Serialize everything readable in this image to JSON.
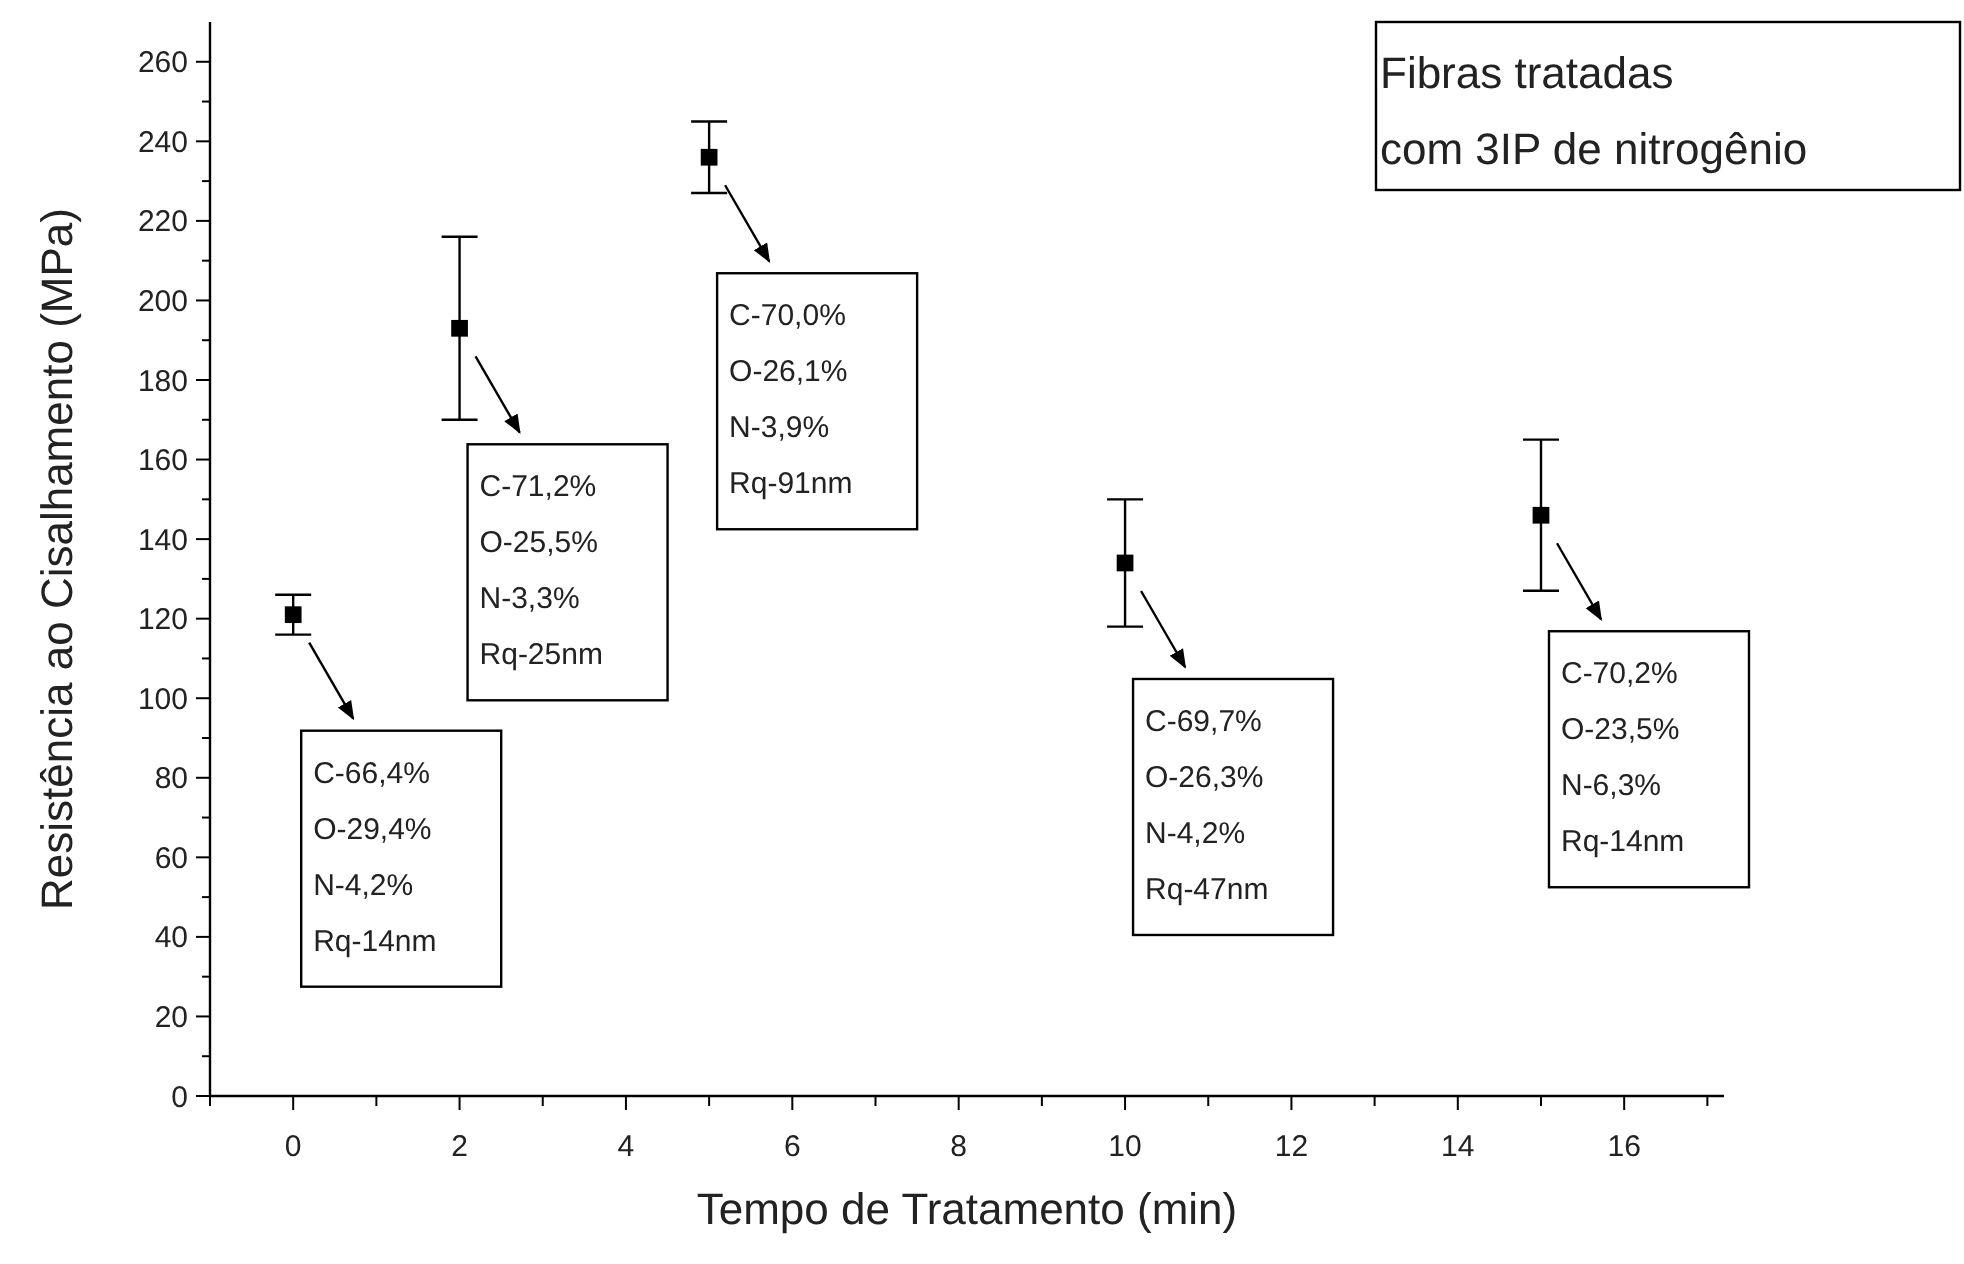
{
  "chart_data": {
    "type": "scatter",
    "title": "Fibras tratadas\ncom 3IP de nitrogênio",
    "xlabel": "Tempo de Tratamento (min)",
    "ylabel": "Resistência ao Cisalhamento (MPa)",
    "x": [
      0,
      2,
      5,
      10,
      15
    ],
    "series": [
      {
        "color": "#000000",
        "values": [
          121,
          193,
          236,
          134,
          146
        ],
        "errors": [
          5,
          23,
          9,
          16,
          19
        ]
      }
    ],
    "marker": "square",
    "grid": false,
    "xlim": [
      -1,
      17.2
    ],
    "xticks": [
      0,
      2,
      4,
      6,
      8,
      10,
      12,
      14,
      16
    ],
    "ylim": [
      0,
      270
    ],
    "yticks": [
      0,
      20,
      40,
      60,
      80,
      100,
      120,
      140,
      160,
      180,
      200,
      220,
      240,
      260
    ],
    "annotations": [
      "C-66,4%\nO-29,4%\nN-4,2%\nRq-14nm",
      "C-71,2%\nO-25,5%\nN-3,3%\nRq-25nm",
      "C-70,0%\nO-26,1%\nN-3,9%\nRq-91nm",
      "C-69,7%\nO-26,3%\nN-4,2%\nRq-47nm",
      "C-70,2%\nO-23,5%\nN-6,3%\nRq-14nm"
    ]
  }
}
